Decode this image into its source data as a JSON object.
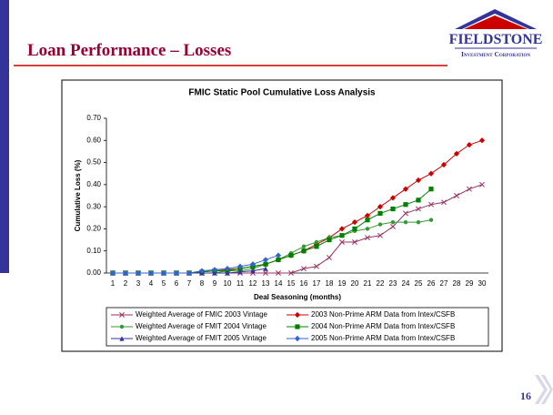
{
  "slide": {
    "title": "Loan Performance – Losses",
    "logo_name": "FIELDSTONE",
    "logo_sub": "Investment Corporation",
    "page": "16"
  },
  "chart_data": {
    "type": "line",
    "title": "FMIC Static Pool Cumulative Loss Analysis",
    "xlabel": "Deal Seasoning (months)",
    "ylabel": "Cumulative Loss (%)",
    "categories": [
      "1",
      "2",
      "3",
      "4",
      "5",
      "6",
      "7",
      "8",
      "9",
      "10",
      "11",
      "12",
      "13",
      "14",
      "15",
      "16",
      "17",
      "18",
      "19",
      "20",
      "21",
      "22",
      "23",
      "24",
      "25",
      "26",
      "27",
      "28",
      "29",
      "30"
    ],
    "ylim": [
      0,
      0.7
    ],
    "yticks": [
      {
        "value": 0,
        "label": "0.00"
      },
      {
        "value": 0.1,
        "label": "0.10"
      },
      {
        "value": 0.2,
        "label": "0.20"
      },
      {
        "value": 0.3,
        "label": "0.30"
      },
      {
        "value": 0.4,
        "label": "0.40"
      },
      {
        "value": 0.5,
        "label": "0.50"
      },
      {
        "value": 0.6,
        "label": "0.60"
      },
      {
        "value": 0.7,
        "label": "0.70"
      }
    ],
    "grid": false,
    "legend": "bottom",
    "series": [
      {
        "name": "Weighted Average of FMIC 2003 Vintage",
        "color": "#993366",
        "marker": "x",
        "values": [
          0,
          0,
          0,
          0,
          0,
          0,
          0,
          0,
          0,
          0,
          0,
          0,
          0,
          0,
          0,
          0.02,
          0.03,
          0.07,
          0.14,
          0.14,
          0.16,
          0.17,
          0.21,
          0.27,
          0.29,
          0.31,
          0.32,
          0.35,
          0.38,
          0.4
        ]
      },
      {
        "name": "2003 Non-Prime ARM Data from Intex/CSFB",
        "color": "#cc0000",
        "marker": "diamond",
        "values": [
          0,
          0,
          0,
          0,
          0,
          0,
          0,
          0.005,
          0.01,
          0.015,
          0.02,
          0.03,
          0.04,
          0.06,
          0.08,
          0.1,
          0.13,
          0.16,
          0.2,
          0.23,
          0.26,
          0.3,
          0.34,
          0.38,
          0.42,
          0.45,
          0.49,
          0.54,
          0.58,
          0.6
        ]
      },
      {
        "name": "Weighted Average of FMIT 2004 Vintage",
        "color": "#339933",
        "marker": "circle",
        "values": [
          0,
          0,
          0,
          0,
          0,
          0,
          0,
          0,
          0,
          0.01,
          0.01,
          0.02,
          0.04,
          0.06,
          0.09,
          0.12,
          0.14,
          0.16,
          0.17,
          0.19,
          0.2,
          0.22,
          0.23,
          0.23,
          0.23,
          0.24,
          null,
          null,
          null,
          null
        ]
      },
      {
        "name": "2004 Non-Prime ARM Data from Intex/CSFB",
        "color": "#008000",
        "marker": "square",
        "values": [
          0,
          0,
          0,
          0,
          0,
          0,
          0,
          0.005,
          0.01,
          0.01,
          0.02,
          0.03,
          0.04,
          0.06,
          0.08,
          0.1,
          0.12,
          0.15,
          0.17,
          0.2,
          0.24,
          0.27,
          0.29,
          0.31,
          0.33,
          0.38,
          null,
          null,
          null,
          null
        ]
      },
      {
        "name": "Weighted Average of FMIT 2005 Vintage",
        "color": "#333399",
        "marker": "triangle",
        "values": [
          0,
          0,
          0,
          0,
          0,
          0,
          0,
          0,
          0,
          0,
          0.005,
          0.01,
          0.02,
          null,
          null,
          null,
          null,
          null,
          null,
          null,
          null,
          null,
          null,
          null,
          null,
          null,
          null,
          null,
          null,
          null
        ]
      },
      {
        "name": "2005 Non-Prime ARM Data from Intex/CSFB",
        "color": "#3366cc",
        "marker": "diamond",
        "values": [
          0,
          0,
          0,
          0,
          0,
          0,
          0,
          0.01,
          0.015,
          0.02,
          0.03,
          0.04,
          0.06,
          0.08,
          null,
          null,
          null,
          null,
          null,
          null,
          null,
          null,
          null,
          null,
          null,
          null,
          null,
          null,
          null,
          null
        ]
      }
    ]
  }
}
